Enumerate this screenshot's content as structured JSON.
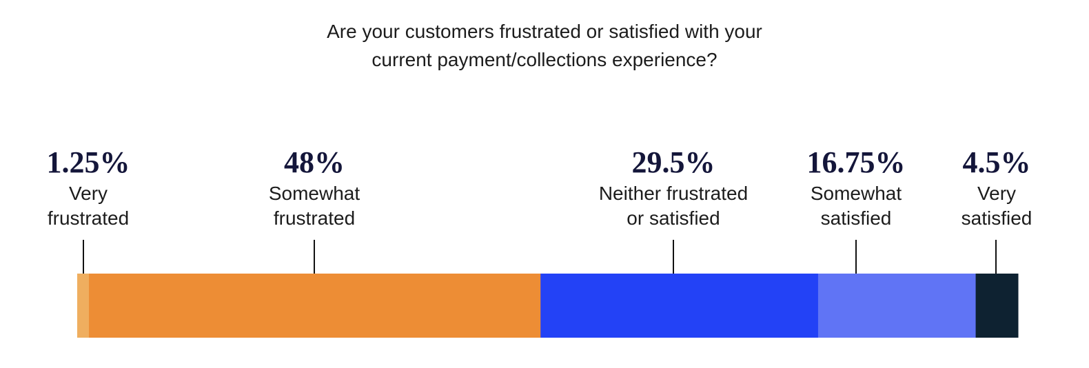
{
  "chart_data": {
    "type": "bar",
    "orientation": "horizontal-stacked",
    "title_lines": [
      "Are your customers frustrated or satisfied with your",
      "current payment/collections experience?"
    ],
    "xlim": [
      0,
      100
    ],
    "grid": false,
    "legend": "none",
    "segments": [
      {
        "value": 1.25,
        "value_label": "1.25%",
        "label_lines": [
          "Very",
          "frustrated"
        ],
        "color": "#efae5f"
      },
      {
        "value": 48,
        "value_label": "48%",
        "label_lines": [
          "Somewhat",
          "frustrated"
        ],
        "color": "#ed8d35"
      },
      {
        "value": 29.5,
        "value_label": "29.5%",
        "label_lines": [
          "Neither frustrated",
          "or satisfied"
        ],
        "color": "#2342f6"
      },
      {
        "value": 16.75,
        "value_label": "16.75%",
        "label_lines": [
          "Somewhat",
          "satisfied"
        ],
        "color": "#6074f5"
      },
      {
        "value": 4.5,
        "value_label": "4.5%",
        "label_lines": [
          "Very",
          "satisfied"
        ],
        "color": "#0e2231"
      }
    ]
  }
}
